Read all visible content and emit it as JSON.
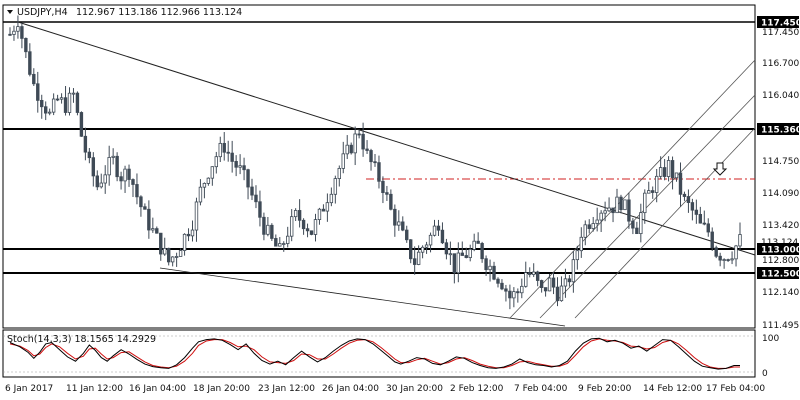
{
  "header": {
    "symbol": "USDJPY,H4",
    "ohlc": "112.967 113.186 112.966 113.124"
  },
  "price_axis": {
    "labels": [
      "117.450",
      "116.700",
      "116.040",
      "115.360",
      "114.750",
      "114.090",
      "113.420",
      "113.124",
      "113.000",
      "112.800",
      "112.500",
      "112.140",
      "111.495"
    ],
    "top_label": "117.450",
    "upper_line_label": "115.360",
    "current_label": "113.124",
    "line_113_label": "113.000",
    "lower_line_label": "112.500"
  },
  "time_axis": {
    "labels": [
      "6 Jan 2017",
      "11 Jan 12:00",
      "16 Jan 04:00",
      "18 Jan 20:00",
      "23 Jan 12:00",
      "26 Jan 04:00",
      "30 Jan 20:00",
      "2 Feb 12:00",
      "7 Feb 04:00",
      "9 Feb 20:00",
      "14 Feb 12:00",
      "17 Feb 04:00"
    ]
  },
  "indicator": {
    "label": "Stoch(14,3,3) 18.1565 14.2929",
    "levels": [
      "100",
      "0"
    ]
  },
  "colors": {
    "candle": "#3f4a56",
    "level_line": "#000000",
    "resistance_dash": "#d02020",
    "stoch_main": "#000000",
    "stoch_signal": "#d01010",
    "channel": "#555555",
    "arrow": "down-arrow-icon"
  },
  "chart_data": {
    "type": "candlestick",
    "symbol": "USDJPY",
    "timeframe": "H4",
    "ylim": [
      111.43,
      117.72
    ],
    "horizontal_levels": [
      117.45,
      115.36,
      113.0,
      112.5
    ],
    "resistance_dash": 114.4,
    "price_path": [
      [
        0,
        117.2
      ],
      [
        8,
        117.5
      ],
      [
        16,
        116.8
      ],
      [
        24,
        116.2
      ],
      [
        32,
        115.9
      ],
      [
        40,
        115.6
      ],
      [
        48,
        115.9
      ],
      [
        56,
        115.8
      ],
      [
        64,
        116.0
      ],
      [
        72,
        115.2
      ],
      [
        80,
        114.6
      ],
      [
        88,
        114.2
      ],
      [
        96,
        114.5
      ],
      [
        104,
        114.7
      ],
      [
        112,
        114.4
      ],
      [
        120,
        114.5
      ],
      [
        128,
        114.0
      ],
      [
        136,
        113.6
      ],
      [
        144,
        113.3
      ],
      [
        152,
        113.0
      ],
      [
        160,
        112.7
      ],
      [
        168,
        112.9
      ],
      [
        176,
        113.2
      ],
      [
        184,
        113.5
      ],
      [
        192,
        114.1
      ],
      [
        200,
        114.5
      ],
      [
        208,
        114.8
      ],
      [
        216,
        115.0
      ],
      [
        224,
        114.7
      ],
      [
        232,
        114.5
      ],
      [
        240,
        114.2
      ],
      [
        248,
        113.8
      ],
      [
        256,
        113.4
      ],
      [
        264,
        113.1
      ],
      [
        272,
        112.9
      ],
      [
        280,
        113.3
      ],
      [
        288,
        113.6
      ],
      [
        296,
        113.5
      ],
      [
        304,
        113.3
      ],
      [
        312,
        113.6
      ],
      [
        320,
        114.0
      ],
      [
        328,
        114.4
      ],
      [
        336,
        114.7
      ],
      [
        344,
        115.0
      ],
      [
        352,
        115.3
      ],
      [
        360,
        114.8
      ],
      [
        368,
        114.5
      ],
      [
        376,
        114.2
      ],
      [
        384,
        113.7
      ],
      [
        392,
        113.4
      ],
      [
        400,
        113.0
      ],
      [
        408,
        112.7
      ],
      [
        416,
        113.0
      ],
      [
        424,
        113.2
      ],
      [
        432,
        113.5
      ],
      [
        440,
        113.0
      ],
      [
        448,
        112.6
      ],
      [
        456,
        112.8
      ],
      [
        464,
        112.9
      ],
      [
        472,
        113.0
      ],
      [
        480,
        112.7
      ],
      [
        488,
        112.5
      ],
      [
        496,
        112.3
      ],
      [
        504,
        112.0
      ],
      [
        512,
        112.1
      ],
      [
        520,
        112.5
      ],
      [
        528,
        112.4
      ],
      [
        536,
        112.1
      ],
      [
        544,
        112.3
      ],
      [
        552,
        112.1
      ],
      [
        560,
        112.2
      ],
      [
        568,
        112.6
      ],
      [
        576,
        113.3
      ],
      [
        584,
        113.5
      ],
      [
        592,
        113.7
      ],
      [
        600,
        113.8
      ],
      [
        608,
        113.8
      ],
      [
        616,
        113.9
      ],
      [
        624,
        113.6
      ],
      [
        632,
        113.4
      ],
      [
        640,
        113.9
      ],
      [
        648,
        114.2
      ],
      [
        656,
        114.4
      ],
      [
        664,
        114.6
      ],
      [
        672,
        114.3
      ],
      [
        680,
        113.9
      ],
      [
        688,
        113.7
      ],
      [
        696,
        113.4
      ],
      [
        704,
        113.3
      ],
      [
        712,
        112.9
      ],
      [
        720,
        112.8
      ],
      [
        728,
        112.9
      ],
      [
        736,
        113.12
      ]
    ],
    "stoch_main": [
      [
        0,
        82
      ],
      [
        10,
        70
      ],
      [
        18,
        55
      ],
      [
        24,
        38
      ],
      [
        30,
        55
      ],
      [
        36,
        78
      ],
      [
        42,
        82
      ],
      [
        50,
        62
      ],
      [
        58,
        42
      ],
      [
        66,
        30
      ],
      [
        74,
        52
      ],
      [
        80,
        75
      ],
      [
        86,
        60
      ],
      [
        92,
        40
      ],
      [
        98,
        30
      ],
      [
        104,
        45
      ],
      [
        112,
        62
      ],
      [
        120,
        50
      ],
      [
        128,
        35
      ],
      [
        136,
        22
      ],
      [
        144,
        15
      ],
      [
        152,
        12
      ],
      [
        160,
        10
      ],
      [
        168,
        20
      ],
      [
        176,
        40
      ],
      [
        184,
        66
      ],
      [
        190,
        84
      ],
      [
        198,
        90
      ],
      [
        206,
        92
      ],
      [
        214,
        88
      ],
      [
        222,
        76
      ],
      [
        230,
        62
      ],
      [
        238,
        78
      ],
      [
        246,
        52
      ],
      [
        254,
        32
      ],
      [
        262,
        22
      ],
      [
        270,
        30
      ],
      [
        278,
        20
      ],
      [
        286,
        40
      ],
      [
        294,
        58
      ],
      [
        302,
        42
      ],
      [
        310,
        28
      ],
      [
        318,
        40
      ],
      [
        326,
        58
      ],
      [
        334,
        74
      ],
      [
        342,
        86
      ],
      [
        350,
        92
      ],
      [
        358,
        90
      ],
      [
        366,
        78
      ],
      [
        374,
        60
      ],
      [
        382,
        42
      ],
      [
        388,
        28
      ],
      [
        394,
        22
      ],
      [
        402,
        30
      ],
      [
        410,
        40
      ],
      [
        418,
        36
      ],
      [
        426,
        24
      ],
      [
        434,
        20
      ],
      [
        442,
        30
      ],
      [
        450,
        42
      ],
      [
        458,
        38
      ],
      [
        466,
        26
      ],
      [
        474,
        18
      ],
      [
        482,
        12
      ],
      [
        490,
        10
      ],
      [
        498,
        14
      ],
      [
        506,
        22
      ],
      [
        514,
        36
      ],
      [
        522,
        26
      ],
      [
        530,
        20
      ],
      [
        538,
        18
      ],
      [
        546,
        14
      ],
      [
        554,
        18
      ],
      [
        562,
        30
      ],
      [
        570,
        58
      ],
      [
        578,
        80
      ],
      [
        586,
        92
      ],
      [
        594,
        94
      ],
      [
        602,
        84
      ],
      [
        610,
        88
      ],
      [
        618,
        80
      ],
      [
        626,
        66
      ],
      [
        634,
        72
      ],
      [
        642,
        58
      ],
      [
        650,
        74
      ],
      [
        658,
        90
      ],
      [
        666,
        88
      ],
      [
        674,
        70
      ],
      [
        682,
        50
      ],
      [
        690,
        30
      ],
      [
        698,
        16
      ],
      [
        706,
        12
      ],
      [
        714,
        8
      ],
      [
        722,
        10
      ],
      [
        730,
        18
      ],
      [
        736,
        18
      ]
    ],
    "stoch_signal": [
      [
        0,
        78
      ],
      [
        10,
        72
      ],
      [
        18,
        60
      ],
      [
        24,
        45
      ],
      [
        30,
        50
      ],
      [
        36,
        68
      ],
      [
        42,
        78
      ],
      [
        50,
        70
      ],
      [
        58,
        52
      ],
      [
        66,
        36
      ],
      [
        74,
        44
      ],
      [
        80,
        64
      ],
      [
        86,
        66
      ],
      [
        92,
        50
      ],
      [
        98,
        36
      ],
      [
        104,
        40
      ],
      [
        112,
        54
      ],
      [
        120,
        56
      ],
      [
        128,
        42
      ],
      [
        136,
        28
      ],
      [
        144,
        18
      ],
      [
        152,
        14
      ],
      [
        160,
        12
      ],
      [
        168,
        16
      ],
      [
        176,
        30
      ],
      [
        184,
        52
      ],
      [
        190,
        74
      ],
      [
        198,
        86
      ],
      [
        206,
        90
      ],
      [
        214,
        90
      ],
      [
        222,
        82
      ],
      [
        230,
        70
      ],
      [
        238,
        72
      ],
      [
        246,
        62
      ],
      [
        254,
        42
      ],
      [
        262,
        28
      ],
      [
        270,
        26
      ],
      [
        278,
        24
      ],
      [
        286,
        32
      ],
      [
        294,
        50
      ],
      [
        302,
        48
      ],
      [
        310,
        36
      ],
      [
        318,
        36
      ],
      [
        326,
        50
      ],
      [
        334,
        66
      ],
      [
        342,
        80
      ],
      [
        350,
        88
      ],
      [
        358,
        90
      ],
      [
        366,
        84
      ],
      [
        374,
        68
      ],
      [
        382,
        50
      ],
      [
        388,
        36
      ],
      [
        394,
        26
      ],
      [
        402,
        26
      ],
      [
        410,
        34
      ],
      [
        418,
        38
      ],
      [
        426,
        30
      ],
      [
        434,
        22
      ],
      [
        442,
        26
      ],
      [
        450,
        36
      ],
      [
        458,
        40
      ],
      [
        466,
        32
      ],
      [
        474,
        22
      ],
      [
        482,
        16
      ],
      [
        490,
        12
      ],
      [
        498,
        12
      ],
      [
        506,
        18
      ],
      [
        514,
        28
      ],
      [
        522,
        30
      ],
      [
        530,
        24
      ],
      [
        538,
        20
      ],
      [
        546,
        16
      ],
      [
        554,
        16
      ],
      [
        562,
        24
      ],
      [
        570,
        46
      ],
      [
        578,
        70
      ],
      [
        586,
        86
      ],
      [
        594,
        92
      ],
      [
        602,
        88
      ],
      [
        610,
        86
      ],
      [
        618,
        82
      ],
      [
        626,
        72
      ],
      [
        634,
        70
      ],
      [
        642,
        64
      ],
      [
        650,
        68
      ],
      [
        658,
        82
      ],
      [
        666,
        88
      ],
      [
        674,
        78
      ],
      [
        682,
        60
      ],
      [
        690,
        40
      ],
      [
        698,
        24
      ],
      [
        706,
        14
      ],
      [
        714,
        10
      ],
      [
        722,
        10
      ],
      [
        730,
        14
      ],
      [
        736,
        14
      ]
    ]
  }
}
